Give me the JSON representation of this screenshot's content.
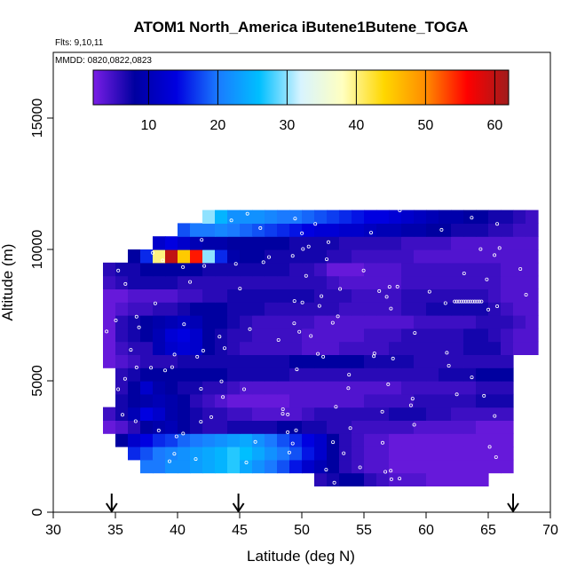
{
  "chart_data": {
    "type": "heatmap",
    "title": "ATOM1 North_America iButene1Butene_TOGA",
    "info_flights": "Flts: 9,10,11",
    "info_dates": "MMDD: 0820,0822,0823",
    "xlabel": "Latitude (deg N)",
    "ylabel": "Altitude (m)",
    "xlim": [
      30,
      70
    ],
    "ylim": [
      0,
      17500
    ],
    "x_ticks": [
      "30",
      "35",
      "40",
      "45",
      "50",
      "55",
      "60",
      "65",
      "70"
    ],
    "y_ticks": [
      "0",
      "5000",
      "10000",
      "15000"
    ],
    "colorbar": {
      "range": [
        2,
        62
      ],
      "ticks": [
        "10",
        "20",
        "30",
        "40",
        "50",
        "60"
      ],
      "stops": [
        "#7a1ee6",
        "#0000a0",
        "#0000e0",
        "#1a7aff",
        "#00bfff",
        "#d8f4ff",
        "#ffffc0",
        "#ffd700",
        "#ff8c00",
        "#ff0000",
        "#a01c1c"
      ]
    },
    "arrows_latitude": [
      34.7,
      44.9,
      67.0
    ],
    "bands": [
      {
        "alt_range": [
          1000,
          1500
        ],
        "lat_range": [
          51,
          65
        ],
        "values": [
          6,
          7,
          8,
          8,
          6,
          5,
          4,
          4,
          4,
          3,
          3,
          3,
          3,
          3
        ]
      },
      {
        "alt_range": [
          1500,
          2000
        ],
        "lat_range": [
          37,
          67
        ],
        "values": [
          20,
          20,
          22,
          22,
          23,
          24,
          25,
          27,
          24,
          22,
          20,
          18,
          15,
          12,
          10,
          8,
          6,
          5,
          4,
          4,
          3,
          3,
          3,
          3,
          3,
          3,
          3,
          3,
          3,
          3
        ]
      },
      {
        "alt_range": [
          2000,
          2500
        ],
        "lat_range": [
          36,
          67
        ],
        "values": [
          16,
          18,
          20,
          21,
          22,
          23,
          24,
          25,
          27,
          26,
          24,
          22,
          20,
          18,
          15,
          12,
          8,
          6,
          5,
          4,
          4,
          3,
          3,
          3,
          3,
          3,
          3,
          3,
          3,
          3,
          3
        ]
      },
      {
        "alt_range": [
          2500,
          3000
        ],
        "lat_range": [
          35,
          67
        ],
        "values": [
          8,
          12,
          14,
          16,
          17,
          19,
          20,
          21,
          22,
          23,
          24,
          22,
          20,
          18,
          16,
          14,
          12,
          8,
          6,
          5,
          4,
          4,
          3,
          3,
          3,
          3,
          3,
          3,
          3,
          3,
          3,
          3
        ]
      },
      {
        "alt_range": [
          3000,
          3500
        ],
        "lat_range": [
          34,
          67
        ],
        "values": [
          3,
          4,
          6,
          8,
          9,
          10,
          8,
          7,
          6,
          6,
          7,
          7,
          7,
          7,
          8,
          8,
          7,
          7,
          6,
          6,
          5,
          5,
          5,
          5,
          5,
          4,
          4,
          4,
          4,
          4,
          3,
          3,
          3
        ]
      },
      {
        "alt_range": [
          3500,
          4000
        ],
        "lat_range": [
          34,
          67
        ],
        "values": [
          5,
          7,
          10,
          14,
          12,
          9,
          8,
          7,
          6,
          6,
          5,
          5,
          4,
          4,
          4,
          4,
          5,
          6,
          6,
          6,
          6,
          6,
          6,
          7,
          7,
          7,
          6,
          6,
          5,
          5,
          5,
          5,
          5
        ]
      },
      {
        "alt_range": [
          4000,
          4500
        ],
        "lat_range": [
          35,
          67
        ],
        "values": [
          7,
          8,
          9,
          10,
          9,
          8,
          6,
          5,
          4,
          3,
          3,
          3,
          3,
          3,
          4,
          4,
          4,
          4,
          4,
          4,
          5,
          5,
          5,
          5,
          6,
          6,
          6,
          6,
          6,
          7,
          7,
          7
        ]
      },
      {
        "alt_range": [
          4500,
          5000
        ],
        "lat_range": [
          35,
          67
        ],
        "values": [
          6,
          8,
          12,
          9,
          8,
          7,
          7,
          6,
          6,
          5,
          4,
          4,
          4,
          4,
          4,
          4,
          4,
          4,
          4,
          4,
          4,
          4,
          4,
          5,
          5,
          5,
          5,
          5,
          5,
          6,
          6,
          6
        ]
      },
      {
        "alt_range": [
          5000,
          5500
        ],
        "lat_range": [
          35,
          67
        ],
        "values": [
          6,
          7,
          8,
          8,
          8,
          8,
          8,
          8,
          8,
          7,
          7,
          7,
          7,
          7,
          6,
          6,
          6,
          6,
          6,
          6,
          6,
          6,
          6,
          6,
          6,
          6,
          7,
          7,
          7,
          8,
          8,
          8
        ]
      },
      {
        "alt_range": [
          5500,
          6000
        ],
        "lat_range": [
          34,
          67
        ],
        "values": [
          3,
          4,
          5,
          6,
          6,
          6,
          7,
          7,
          7,
          7,
          7,
          7,
          7,
          7,
          7,
          8,
          8,
          8,
          8,
          8,
          8,
          7,
          7,
          7,
          7,
          6,
          6,
          6,
          6,
          6,
          6,
          6,
          6
        ]
      },
      {
        "alt_range": [
          6000,
          6500
        ],
        "lat_range": [
          34,
          69
        ],
        "values": [
          3,
          5,
          6,
          6,
          10,
          12,
          13,
          12,
          8,
          7,
          6,
          5,
          5,
          5,
          5,
          5,
          4,
          4,
          4,
          5,
          5,
          5,
          5,
          6,
          6,
          6,
          6,
          6,
          6,
          7,
          7,
          7,
          5,
          4,
          4
        ]
      },
      {
        "alt_range": [
          6500,
          7000
        ],
        "lat_range": [
          34,
          69
        ],
        "values": [
          3,
          6,
          7,
          8,
          10,
          13,
          14,
          12,
          8,
          7,
          6,
          6,
          5,
          5,
          5,
          5,
          4,
          4,
          4,
          4,
          4,
          5,
          5,
          5,
          6,
          6,
          6,
          6,
          6,
          7,
          7,
          6,
          5,
          4,
          4
        ]
      },
      {
        "alt_range": [
          7000,
          7500
        ],
        "lat_range": [
          34,
          69
        ],
        "values": [
          3,
          6,
          7,
          8,
          9,
          10,
          11,
          10,
          8,
          8,
          7,
          6,
          5,
          5,
          5,
          5,
          5,
          4,
          4,
          4,
          4,
          4,
          4,
          4,
          4,
          5,
          5,
          5,
          5,
          5,
          6,
          6,
          6,
          5,
          4
        ]
      },
      {
        "alt_range": [
          7500,
          8000
        ],
        "lat_range": [
          34,
          69
        ],
        "values": [
          3,
          4,
          5,
          5,
          6,
          6,
          7,
          8,
          8,
          8,
          7,
          7,
          7,
          6,
          6,
          6,
          6,
          6,
          6,
          5,
          5,
          5,
          5,
          5,
          6,
          6,
          7,
          7,
          7,
          7,
          7,
          6,
          5,
          4,
          4
        ]
      },
      {
        "alt_range": [
          8000,
          8500
        ],
        "lat_range": [
          34,
          69
        ],
        "values": [
          3,
          3,
          4,
          4,
          4,
          4,
          5,
          5,
          6,
          6,
          7,
          7,
          7,
          7,
          7,
          7,
          7,
          6,
          6,
          6,
          5,
          5,
          5,
          5,
          6,
          6,
          6,
          6,
          6,
          6,
          6,
          5,
          4,
          4,
          4
        ]
      },
      {
        "alt_range": [
          8500,
          9000
        ],
        "lat_range": [
          34,
          69
        ],
        "values": [
          5,
          6,
          7,
          7,
          7,
          7,
          6,
          6,
          6,
          6,
          6,
          6,
          6,
          6,
          6,
          6,
          6,
          6,
          5,
          4,
          4,
          4,
          4,
          4,
          5,
          5,
          5,
          5,
          5,
          5,
          5,
          5,
          4,
          4,
          4
        ]
      },
      {
        "alt_range": [
          9000,
          9500
        ],
        "lat_range": [
          34,
          69
        ],
        "values": [
          6,
          7,
          7,
          8,
          8,
          8,
          8,
          8,
          7,
          7,
          7,
          7,
          7,
          7,
          7,
          6,
          6,
          5,
          3,
          3,
          3,
          4,
          4,
          4,
          5,
          5,
          5,
          5,
          5,
          5,
          5,
          5,
          4,
          4,
          4
        ]
      },
      {
        "alt_range": [
          9500,
          10000
        ],
        "lat_range": [
          36,
          69
        ],
        "values": [
          8,
          16,
          40,
          60,
          45,
          55,
          30,
          16,
          9,
          8,
          8,
          7,
          7,
          7,
          7,
          7,
          6,
          6,
          5,
          5,
          5,
          5,
          5,
          4,
          4,
          4,
          4,
          4,
          4,
          4,
          4,
          4,
          4
        ]
      },
      {
        "alt_range": [
          10000,
          10500
        ],
        "lat_range": [
          38,
          69
        ],
        "values": [
          12,
          14,
          12,
          10,
          9,
          9,
          8,
          8,
          8,
          8,
          8,
          7,
          7,
          7,
          7,
          6,
          6,
          6,
          6,
          6,
          5,
          5,
          5,
          5,
          4,
          4,
          4,
          4,
          4,
          4,
          4
        ]
      },
      {
        "alt_range": [
          10500,
          11000
        ],
        "lat_range": [
          40,
          69
        ],
        "values": [
          18,
          20,
          20,
          21,
          20,
          19,
          18,
          17,
          16,
          15,
          14,
          13,
          13,
          12,
          12,
          11,
          10,
          10,
          9,
          9,
          8,
          8,
          7,
          7,
          7,
          6,
          6,
          5,
          5
        ]
      },
      {
        "alt_range": [
          11000,
          11500
        ],
        "lat_range": [
          42,
          69
        ],
        "values": [
          30,
          25,
          22,
          22,
          22,
          21,
          20,
          20,
          19,
          18,
          17,
          16,
          15,
          14,
          14,
          13,
          12,
          11,
          10,
          9,
          9,
          8,
          8,
          7,
          7,
          6,
          5
        ]
      }
    ]
  }
}
